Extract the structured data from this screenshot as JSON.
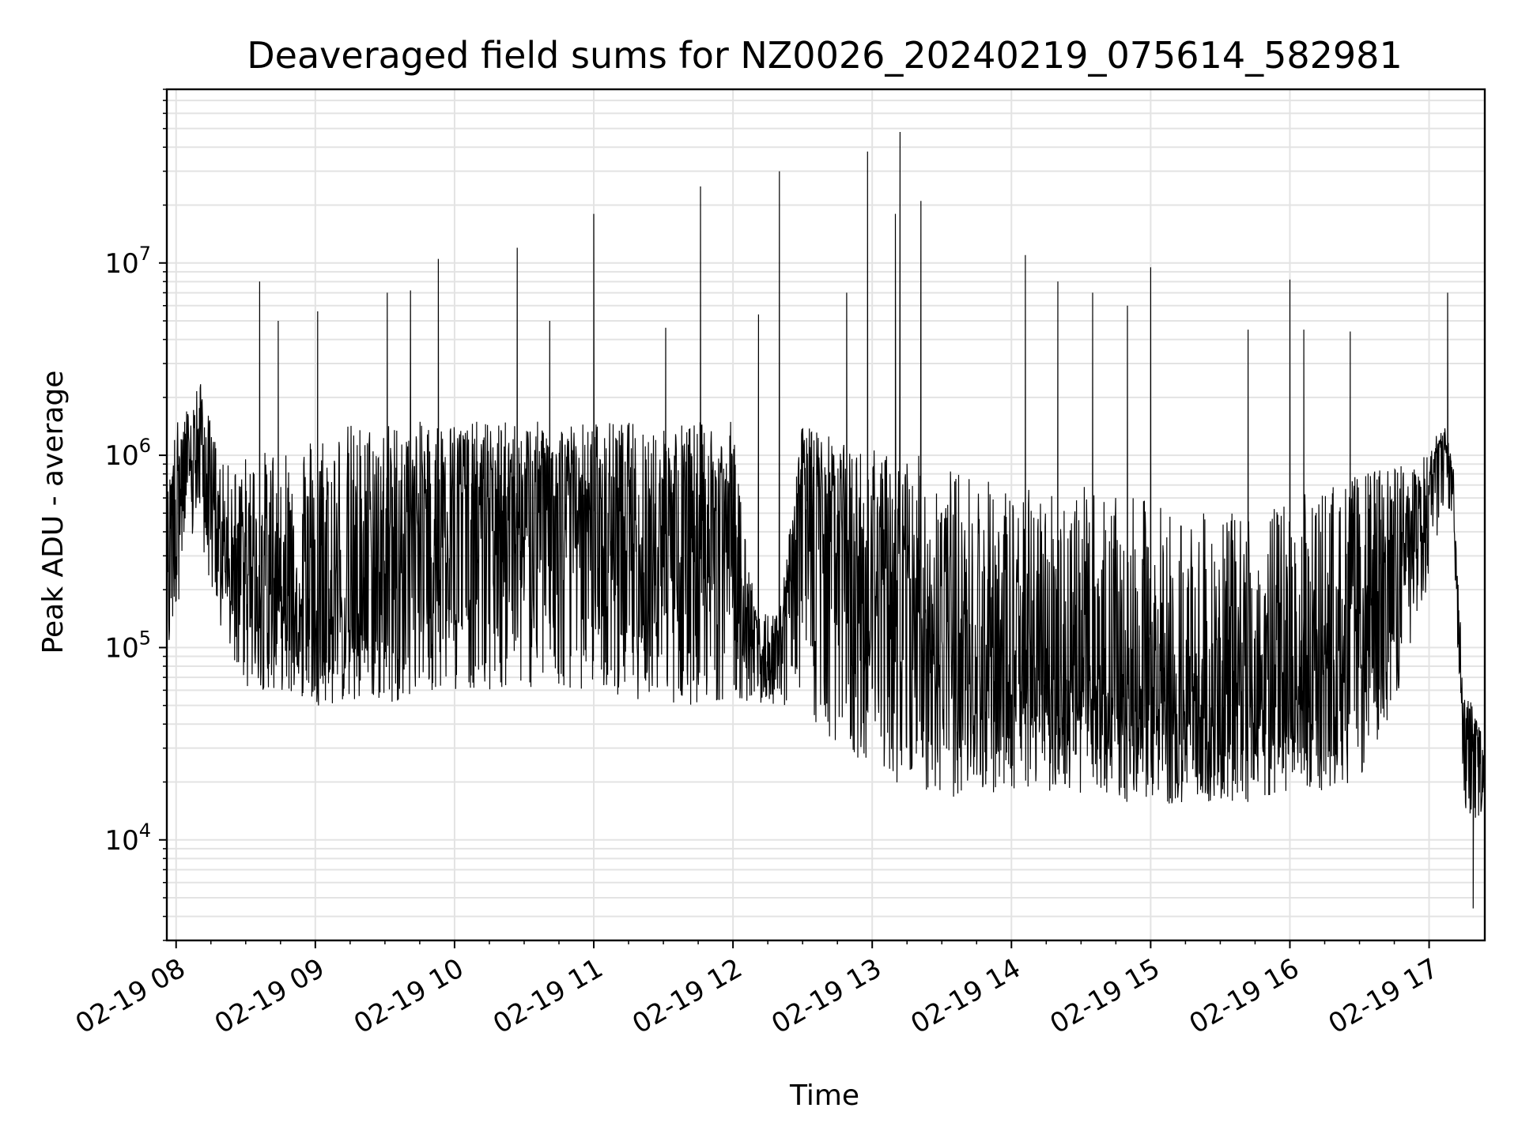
{
  "chart_data": {
    "type": "line",
    "title": "Deaveraged field sums for NZ0026_20240219_075614_582981",
    "xlabel": "Time",
    "ylabel": "Peak ADU - average",
    "yscale": "log",
    "xlim": [
      "2024-02-19 07:56",
      "2024-02-19 17:24"
    ],
    "ylim": [
      3000,
      80000000
    ],
    "grid": true,
    "line_color": "#000000",
    "x_ticks": [
      "02-19 08",
      "02-19 09",
      "02-19 10",
      "02-19 11",
      "02-19 12",
      "02-19 13",
      "02-19 14",
      "02-19 15",
      "02-19 16",
      "02-19 17"
    ],
    "y_ticks": [
      {
        "base": "10",
        "exp": "4",
        "value": 10000
      },
      {
        "base": "10",
        "exp": "5",
        "value": 100000
      },
      {
        "base": "10",
        "exp": "6",
        "value": 1000000
      },
      {
        "base": "10",
        "exp": "7",
        "value": 10000000
      }
    ],
    "series": [
      {
        "x": [
          "2024-02-19 07:56",
          "2024-02-19 08:00",
          "2024-02-19 08:05",
          "2024-02-19 08:10",
          "2024-02-19 08:15",
          "2024-02-19 08:20",
          "2024-02-19 08:25",
          "2024-02-19 08:30",
          "2024-02-19 08:35",
          "2024-02-19 08:40",
          "2024-02-19 08:45",
          "2024-02-19 08:50",
          "2024-02-19 08:55",
          "2024-02-19 09:00",
          "2024-02-19 09:10",
          "2024-02-19 09:20",
          "2024-02-19 09:30",
          "2024-02-19 09:40",
          "2024-02-19 09:50",
          "2024-02-19 10:00",
          "2024-02-19 10:15",
          "2024-02-19 10:30",
          "2024-02-19 10:45",
          "2024-02-19 11:00",
          "2024-02-19 11:15",
          "2024-02-19 11:30",
          "2024-02-19 11:45",
          "2024-02-19 12:00",
          "2024-02-19 12:10",
          "2024-02-19 12:20",
          "2024-02-19 12:30",
          "2024-02-19 12:40",
          "2024-02-19 12:50",
          "2024-02-19 13:00",
          "2024-02-19 13:10",
          "2024-02-19 13:20",
          "2024-02-19 13:30",
          "2024-02-19 13:45",
          "2024-02-19 14:00",
          "2024-02-19 14:15",
          "2024-02-19 14:30",
          "2024-02-19 14:45",
          "2024-02-19 15:00",
          "2024-02-19 15:15",
          "2024-02-19 15:30",
          "2024-02-19 15:45",
          "2024-02-19 16:00",
          "2024-02-19 16:15",
          "2024-02-19 16:30",
          "2024-02-19 16:45",
          "2024-02-19 17:00",
          "2024-02-19 17:05",
          "2024-02-19 17:10",
          "2024-02-19 17:15",
          "2024-02-19 17:20",
          "2024-02-19 17:24"
        ],
        "y": [
          450000,
          800000,
          900000,
          1300000,
          700000,
          400000,
          350000,
          300000,
          260000,
          240000,
          220000,
          200000,
          210000,
          180000,
          190000,
          220000,
          350000,
          500000,
          600000,
          650000,
          600000,
          580000,
          560000,
          600000,
          500000,
          450000,
          500000,
          450000,
          90000,
          90000,
          900000,
          700000,
          400000,
          200000,
          180000,
          150000,
          120000,
          100000,
          80000,
          70000,
          65000,
          60000,
          55000,
          50000,
          50000,
          55000,
          60000,
          80000,
          150000,
          300000,
          600000,
          1200000,
          800000,
          40000,
          35000,
          20000
        ],
        "upper": [
          600000,
          1500000,
          1800000,
          2500000,
          1500000,
          900000,
          900000,
          1000000,
          1000000,
          1100000,
          1200000,
          1200000,
          1300000,
          1400000,
          1500000,
          1500000,
          1500000,
          1500000,
          1500000,
          1500000,
          1500000,
          1500000,
          1500000,
          1500000,
          1500000,
          1500000,
          1500000,
          1500000,
          150000,
          150000,
          1500000,
          1300000,
          1100000,
          1100000,
          1000000,
          1000000,
          900000,
          800000,
          700000,
          700000,
          700000,
          600000,
          600000,
          500000,
          500000,
          500000,
          600000,
          700000,
          800000,
          900000,
          1000000,
          1500000,
          1200000,
          55000,
          52000,
          45000
        ],
        "lower": [
          60000,
          150000,
          300000,
          400000,
          200000,
          100000,
          80000,
          60000,
          60000,
          60000,
          60000,
          55000,
          55000,
          50000,
          50000,
          50000,
          50000,
          55000,
          60000,
          60000,
          60000,
          60000,
          60000,
          60000,
          55000,
          50000,
          50000,
          55000,
          50000,
          50000,
          50000,
          30000,
          25000,
          25000,
          20000,
          18000,
          16000,
          17000,
          18000,
          18000,
          17000,
          16000,
          15000,
          15000,
          15000,
          15000,
          17000,
          18000,
          20000,
          50000,
          200000,
          500000,
          500000,
          15000,
          12000,
          15000
        ],
        "spikes": [
          {
            "x": "2024-02-19 08:36",
            "y": 8000000
          },
          {
            "x": "2024-02-19 08:44",
            "y": 5000000
          },
          {
            "x": "2024-02-19 09:01",
            "y": 5600000
          },
          {
            "x": "2024-02-19 09:31",
            "y": 7000000
          },
          {
            "x": "2024-02-19 09:41",
            "y": 7200000
          },
          {
            "x": "2024-02-19 09:53",
            "y": 10500000
          },
          {
            "x": "2024-02-19 10:27",
            "y": 12000000
          },
          {
            "x": "2024-02-19 10:41",
            "y": 5000000
          },
          {
            "x": "2024-02-19 11:00",
            "y": 18000000
          },
          {
            "x": "2024-02-19 11:31",
            "y": 4600000
          },
          {
            "x": "2024-02-19 11:46",
            "y": 25000000
          },
          {
            "x": "2024-02-19 12:11",
            "y": 5400000
          },
          {
            "x": "2024-02-19 12:20",
            "y": 30000000
          },
          {
            "x": "2024-02-19 12:49",
            "y": 7000000
          },
          {
            "x": "2024-02-19 12:58",
            "y": 38000000
          },
          {
            "x": "2024-02-19 13:10",
            "y": 18000000
          },
          {
            "x": "2024-02-19 13:12",
            "y": 48000000
          },
          {
            "x": "2024-02-19 13:21",
            "y": 21000000
          },
          {
            "x": "2024-02-19 14:06",
            "y": 11000000
          },
          {
            "x": "2024-02-19 14:20",
            "y": 8000000
          },
          {
            "x": "2024-02-19 14:35",
            "y": 7000000
          },
          {
            "x": "2024-02-19 14:50",
            "y": 6000000
          },
          {
            "x": "2024-02-19 15:00",
            "y": 9500000
          },
          {
            "x": "2024-02-19 15:42",
            "y": 4500000
          },
          {
            "x": "2024-02-19 16:00",
            "y": 8200000
          },
          {
            "x": "2024-02-19 16:06",
            "y": 4500000
          },
          {
            "x": "2024-02-19 16:26",
            "y": 4400000
          },
          {
            "x": "2024-02-19 17:08",
            "y": 7000000
          },
          {
            "x": "2024-02-19 17:19",
            "y": 4400
          }
        ]
      }
    ]
  }
}
